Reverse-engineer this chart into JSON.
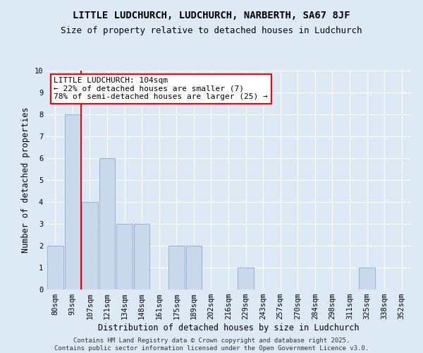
{
  "title1": "LITTLE LUDCHURCH, LUDCHURCH, NARBERTH, SA67 8JF",
  "title2": "Size of property relative to detached houses in Ludchurch",
  "xlabel": "Distribution of detached houses by size in Ludchurch",
  "ylabel": "Number of detached properties",
  "categories": [
    "80sqm",
    "93sqm",
    "107sqm",
    "121sqm",
    "134sqm",
    "148sqm",
    "161sqm",
    "175sqm",
    "189sqm",
    "202sqm",
    "216sqm",
    "229sqm",
    "243sqm",
    "257sqm",
    "270sqm",
    "284sqm",
    "298sqm",
    "311sqm",
    "325sqm",
    "338sqm",
    "352sqm"
  ],
  "values": [
    2,
    8,
    4,
    6,
    3,
    3,
    0,
    2,
    2,
    0,
    0,
    1,
    0,
    0,
    0,
    0,
    0,
    0,
    1,
    0,
    0
  ],
  "bar_color": "#c8d9ec",
  "bar_edge_color": "#8aaac8",
  "ylim": [
    0,
    10
  ],
  "yticks": [
    0,
    1,
    2,
    3,
    4,
    5,
    6,
    7,
    8,
    9,
    10
  ],
  "property_label": "LITTLE LUDCHURCH: 104sqm",
  "annotation_line1": "← 22% of detached houses are smaller (7)",
  "annotation_line2": "78% of semi-detached houses are larger (25) →",
  "vline_x_index": 1.5,
  "footer1": "Contains HM Land Registry data © Crown copyright and database right 2025.",
  "footer2": "Contains public sector information licensed under the Open Government Licence v3.0.",
  "bg_color": "#ddeaf6",
  "plot_bg_color": "#ddeaf6",
  "title_fontsize": 10,
  "subtitle_fontsize": 9,
  "axis_label_fontsize": 8.5,
  "tick_fontsize": 7.5,
  "annotation_fontsize": 8,
  "footer_fontsize": 6.5
}
